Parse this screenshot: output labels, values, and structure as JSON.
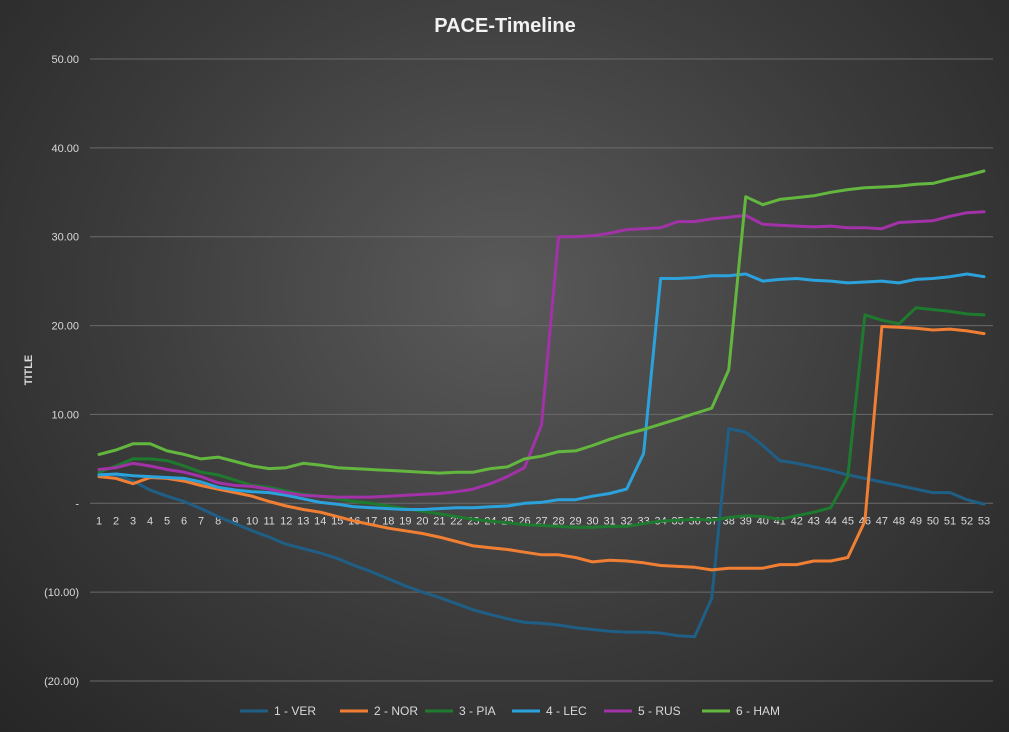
{
  "chart_data": {
    "type": "line",
    "title": "PACE-Timeline",
    "ylabel": "TITLE",
    "xlabel": "",
    "ylim": [
      -20,
      50
    ],
    "yticks": [
      {
        "value": 50,
        "label": "50.00"
      },
      {
        "value": 40,
        "label": "40.00"
      },
      {
        "value": 30,
        "label": "30.00"
      },
      {
        "value": 20,
        "label": "20.00"
      },
      {
        "value": 10,
        "label": "10.00"
      },
      {
        "value": 0,
        "label": "-"
      },
      {
        "value": -10,
        "label": "(10.00)"
      },
      {
        "value": -20,
        "label": "(20.00)"
      }
    ],
    "grid": true,
    "legend": "bottom",
    "categories": [
      "1",
      "2",
      "3",
      "4",
      "5",
      "6",
      "7",
      "8",
      "9",
      "10",
      "11",
      "12",
      "13",
      "14",
      "15",
      "16",
      "17",
      "18",
      "19",
      "20",
      "21",
      "22",
      "23",
      "24",
      "25",
      "26",
      "27",
      "28",
      "29",
      "30",
      "31",
      "32",
      "33",
      "34",
      "35",
      "36",
      "37",
      "38",
      "39",
      "40",
      "41",
      "42",
      "43",
      "44",
      "45",
      "46",
      "47",
      "48",
      "49",
      "50",
      "51",
      "52",
      "53"
    ],
    "series": [
      {
        "name": "1 - VER",
        "color": "#1f5f86",
        "values": [
          3.3,
          3.2,
          2.5,
          1.5,
          0.8,
          0.2,
          -0.6,
          -1.5,
          -2.3,
          -3.1,
          -3.8,
          -4.6,
          -5.1,
          -5.6,
          -6.2,
          -7.0,
          -7.7,
          -8.5,
          -9.3,
          -10.0,
          -10.6,
          -11.3,
          -12.0,
          -12.5,
          -13.0,
          -13.4,
          -13.5,
          -13.7,
          -14.0,
          -14.2,
          -14.4,
          -14.5,
          -14.5,
          -14.6,
          -14.9,
          -15.0,
          -10.7,
          8.4,
          8.0,
          6.5,
          4.8,
          4.5,
          4.1,
          3.7,
          3.2,
          2.8,
          2.4,
          2.0,
          1.6,
          1.2,
          1.2,
          0.4,
          -0.1
        ]
      },
      {
        "name": "2 - NOR",
        "color": "#f07f34",
        "values": [
          3.0,
          2.8,
          2.2,
          2.9,
          2.8,
          2.5,
          2.0,
          1.6,
          1.2,
          0.8,
          0.2,
          -0.3,
          -0.7,
          -1.0,
          -1.5,
          -2.0,
          -2.4,
          -2.8,
          -3.1,
          -3.4,
          -3.8,
          -4.3,
          -4.8,
          -5.0,
          -5.2,
          -5.5,
          -5.8,
          -5.8,
          -6.1,
          -6.6,
          -6.4,
          -6.5,
          -6.7,
          -7.0,
          -7.1,
          -7.2,
          -7.5,
          -7.3,
          -7.3,
          -7.3,
          -6.9,
          -6.9,
          -6.5,
          -6.5,
          -6.1,
          -2.0,
          19.9,
          19.8,
          19.7,
          19.5,
          19.6,
          19.4,
          19.1
        ]
      },
      {
        "name": "3 - PIA",
        "color": "#1e7a2e",
        "values": [
          3.5,
          4.2,
          5.0,
          5.0,
          4.8,
          4.2,
          3.5,
          3.2,
          2.6,
          2.0,
          1.8,
          1.4,
          1.0,
          0.8,
          0.5,
          0.2,
          0.0,
          -0.3,
          -0.6,
          -0.9,
          -1.2,
          -1.5,
          -1.8,
          -2.0,
          -2.2,
          -2.4,
          -2.5,
          -2.6,
          -2.7,
          -2.7,
          -2.6,
          -2.6,
          -2.3,
          -2.0,
          -1.9,
          -1.8,
          -1.9,
          -1.6,
          -1.4,
          -1.5,
          -1.8,
          -1.4,
          -1.0,
          -0.5,
          3.0,
          21.2,
          20.6,
          20.2,
          22.0,
          21.8,
          21.6,
          21.3,
          21.2
        ]
      },
      {
        "name": "4 - LEC",
        "color": "#2ba2dc",
        "values": [
          3.2,
          3.3,
          3.1,
          3.0,
          2.9,
          2.8,
          2.4,
          1.8,
          1.5,
          1.3,
          1.2,
          0.9,
          0.5,
          0.1,
          -0.1,
          -0.4,
          -0.5,
          -0.6,
          -0.7,
          -0.7,
          -0.6,
          -0.5,
          -0.5,
          -0.4,
          -0.3,
          0.0,
          0.1,
          0.4,
          0.4,
          0.8,
          1.1,
          1.6,
          5.6,
          25.3,
          25.3,
          25.4,
          25.6,
          25.6,
          25.8,
          25.0,
          25.2,
          25.3,
          25.1,
          25.0,
          24.8,
          24.9,
          25.0,
          24.8,
          25.2,
          25.3,
          25.5,
          25.8,
          25.5
        ]
      },
      {
        "name": "5 - RUS",
        "color": "#a232a7",
        "values": [
          3.8,
          4.0,
          4.5,
          4.2,
          3.8,
          3.5,
          3.0,
          2.3,
          2.0,
          1.9,
          1.6,
          1.2,
          0.9,
          0.8,
          0.7,
          0.7,
          0.7,
          0.8,
          0.9,
          1.0,
          1.1,
          1.3,
          1.6,
          2.2,
          3.0,
          4.0,
          8.8,
          30.0,
          30.0,
          30.1,
          30.4,
          30.8,
          30.9,
          31.0,
          31.7,
          31.7,
          32.0,
          32.2,
          32.4,
          31.4,
          31.3,
          31.2,
          31.1,
          31.2,
          31.0,
          31.0,
          30.9,
          31.6,
          31.7,
          31.8,
          32.3,
          32.7,
          32.8
        ]
      },
      {
        "name": "6 - HAM",
        "color": "#63b73f",
        "values": [
          5.5,
          6.0,
          6.7,
          6.7,
          5.9,
          5.5,
          5.0,
          5.2,
          4.7,
          4.2,
          3.9,
          4.0,
          4.5,
          4.3,
          4.0,
          3.9,
          3.8,
          3.7,
          3.6,
          3.5,
          3.4,
          3.5,
          3.5,
          3.9,
          4.1,
          5.0,
          5.3,
          5.8,
          5.9,
          6.5,
          7.2,
          7.8,
          8.3,
          8.9,
          9.5,
          10.1,
          10.7,
          15.0,
          34.5,
          33.6,
          34.2,
          34.4,
          34.6,
          35.0,
          35.3,
          35.5,
          35.6,
          35.7,
          35.9,
          36.0,
          36.5,
          36.9,
          37.4
        ]
      }
    ]
  }
}
